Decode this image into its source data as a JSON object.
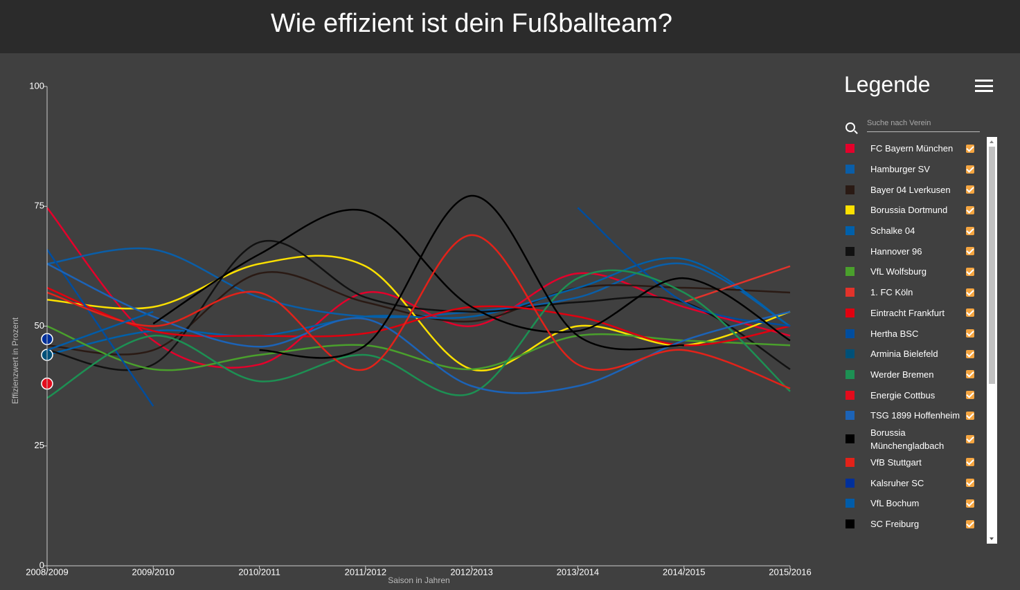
{
  "chart_data": {
    "type": "line",
    "title": "Wie effizient ist dein Fußballteam?",
    "x_label": "Saison in Jahren",
    "y_label": "Effizienzwert in Prozent",
    "legend_title": "Legende",
    "search_placeholder": "Suche nach Verein",
    "categories": [
      "2008/2009",
      "2009/2010",
      "2010/2011",
      "2011/2012",
      "2012/2013",
      "2013/2014",
      "2014/2015",
      "2015/2016"
    ],
    "ylim": [
      0,
      100
    ],
    "yticks": [
      0,
      25,
      50,
      75,
      100
    ],
    "grid": false,
    "series": [
      {
        "name": "FC Bayern München",
        "color": "#e4002b",
        "values": [
          74.7,
          47,
          42,
          57,
          50,
          61,
          54,
          48
        ]
      },
      {
        "name": "Hamburger SV",
        "color": "#0a5ea8",
        "values": [
          63,
          66,
          56,
          52,
          53,
          56,
          63,
          50
        ]
      },
      {
        "name": "Bayer 04 Lverkusen",
        "color": "#2a1a14",
        "values": [
          46,
          45,
          61,
          55,
          51,
          58,
          58,
          57
        ]
      },
      {
        "name": "Borussia Dortmund",
        "color": "#fde100",
        "values": [
          55.5,
          54,
          63,
          62.5,
          41,
          50,
          46,
          53
        ]
      },
      {
        "name": "Schalke 04",
        "color": "#0060aa",
        "values": [
          44,
          49,
          48,
          52,
          52,
          58,
          64,
          50
        ]
      },
      {
        "name": "Hannover 96",
        "color": "#111111",
        "values": [
          45,
          42,
          67.5,
          56,
          53,
          55,
          55,
          41
        ]
      },
      {
        "name": "VfL Wolfsburg",
        "color": "#4aa02c",
        "values": [
          50,
          41,
          44,
          46,
          41,
          48,
          47,
          46
        ]
      },
      {
        "name": "1. FC Köln",
        "color": "#e2332b",
        "values": [
          null,
          null,
          null,
          null,
          null,
          null,
          55,
          62.5
        ]
      },
      {
        "name": "Eintracht Frankfurt",
        "color": "#e1000f",
        "values": [
          58,
          49,
          48,
          48.5,
          54,
          52,
          46,
          50
        ]
      },
      {
        "name": "Hertha BSC",
        "color": "#004d9e",
        "values": [
          66,
          33.3,
          null,
          null,
          null,
          74.7,
          55,
          50
        ]
      },
      {
        "name": "Arminia Bielefeld",
        "color": "#005078",
        "values": [
          44,
          null,
          null,
          null,
          null,
          null,
          null,
          null
        ]
      },
      {
        "name": "Werder Bremen",
        "color": "#1d9053",
        "values": [
          35,
          48,
          38.5,
          44,
          36,
          60,
          57,
          36.4
        ]
      },
      {
        "name": "Energie Cottbus",
        "color": "#e30b1c",
        "values": [
          38,
          null,
          null,
          null,
          null,
          null,
          null,
          null
        ]
      },
      {
        "name": "TSG 1899 Hoffenheim",
        "color": "#1c63b7",
        "values": [
          63,
          52,
          45.7,
          51.5,
          37.5,
          37.5,
          47,
          53
        ]
      },
      {
        "name": "Borussia Münchengladbach",
        "color": "#000000",
        "values": [
          null,
          50.5,
          65,
          74,
          54,
          49,
          60,
          47
        ]
      },
      {
        "name": "VfB Stuttgart",
        "color": "#e32219",
        "values": [
          57,
          50,
          57,
          41,
          69,
          42,
          45,
          37
        ]
      },
      {
        "name": "Kalsruher SC",
        "color": "#00309b",
        "values": [
          47.3,
          null,
          null,
          null,
          null,
          null,
          null,
          null
        ]
      },
      {
        "name": "VfL Bochum",
        "color": "#005ca9",
        "values": [
          45,
          53,
          null,
          null,
          null,
          null,
          null,
          null
        ]
      },
      {
        "name": "SC Freiburg",
        "color": "#000000",
        "values": [
          null,
          null,
          45,
          46,
          77.2,
          48,
          46,
          null
        ]
      }
    ]
  }
}
